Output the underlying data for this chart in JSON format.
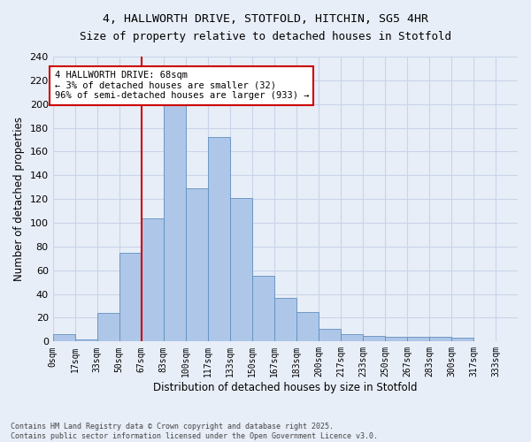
{
  "title_line1": "4, HALLWORTH DRIVE, STOTFOLD, HITCHIN, SG5 4HR",
  "title_line2": "Size of property relative to detached houses in Stotfold",
  "xlabel": "Distribution of detached houses by size in Stotfold",
  "ylabel": "Number of detached properties",
  "bar_color": "#aec6e8",
  "bar_edge_color": "#6090c0",
  "categories": [
    "0sqm",
    "17sqm",
    "33sqm",
    "50sqm",
    "67sqm",
    "83sqm",
    "100sqm",
    "117sqm",
    "133sqm",
    "150sqm",
    "167sqm",
    "183sqm",
    "200sqm",
    "217sqm",
    "233sqm",
    "250sqm",
    "267sqm",
    "283sqm",
    "300sqm",
    "317sqm",
    "333sqm"
  ],
  "values": [
    6,
    2,
    24,
    75,
    104,
    200,
    129,
    172,
    121,
    55,
    37,
    25,
    11,
    6,
    5,
    4,
    4,
    4,
    3,
    0,
    0
  ],
  "vline_x_index": 4,
  "vline_color": "#cc0000",
  "annotation_text": "4 HALLWORTH DRIVE: 68sqm\n← 3% of detached houses are smaller (32)\n96% of semi-detached houses are larger (933) →",
  "annotation_box_color": "#cc0000",
  "annotation_text_color": "#000000",
  "annotation_bg": "#ffffff",
  "grid_color": "#c8d4e8",
  "bg_color": "#e8eef8",
  "ylim_max": 240,
  "footnote": "Contains HM Land Registry data © Crown copyright and database right 2025.\nContains public sector information licensed under the Open Government Licence v3.0."
}
